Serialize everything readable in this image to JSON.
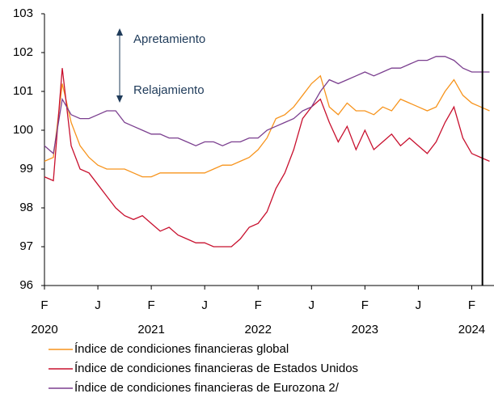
{
  "chart_data": {
    "type": "line",
    "x": [
      0,
      1,
      2,
      3,
      4,
      5,
      6,
      7,
      8,
      9,
      10,
      11,
      12,
      13,
      14,
      15,
      16,
      17,
      18,
      19,
      20,
      21,
      22,
      23,
      24,
      25,
      26,
      27,
      28,
      29,
      30,
      31,
      32,
      33,
      34,
      35,
      36,
      37,
      38,
      39,
      40,
      41,
      42,
      43,
      44,
      45,
      46,
      47,
      48,
      49,
      50
    ],
    "xlim": [
      0,
      50.5
    ],
    "xticks": [
      {
        "value": 0,
        "label": "F",
        "year": "2020"
      },
      {
        "value": 6,
        "label": "J"
      },
      {
        "value": 12,
        "label": "F",
        "year": "2021"
      },
      {
        "value": 18,
        "label": "J"
      },
      {
        "value": 24,
        "label": "F",
        "year": "2022"
      },
      {
        "value": 30,
        "label": "J"
      },
      {
        "value": 36,
        "label": "F",
        "year": "2023"
      },
      {
        "value": 42,
        "label": "J"
      },
      {
        "value": 48,
        "label": "F",
        "year": "2024"
      }
    ],
    "ylim": [
      96,
      103
    ],
    "yticks": [
      96,
      97,
      98,
      99,
      100,
      101,
      102,
      103
    ],
    "vline": 49.2,
    "annotations": [
      "Apretamiento",
      "Relajamiento"
    ],
    "series": [
      {
        "name": "Índice de condiciones financieras global",
        "color": "#f7941d",
        "values": [
          99.2,
          99.3,
          101.2,
          100.2,
          99.6,
          99.3,
          99.1,
          99.0,
          99.0,
          99.0,
          98.9,
          98.8,
          98.8,
          98.9,
          98.9,
          98.9,
          98.9,
          98.9,
          98.9,
          99.0,
          99.1,
          99.1,
          99.2,
          99.3,
          99.5,
          99.8,
          100.3,
          100.4,
          100.6,
          100.9,
          101.2,
          101.4,
          100.6,
          100.4,
          100.7,
          100.5,
          100.5,
          100.4,
          100.6,
          100.5,
          100.8,
          100.7,
          100.6,
          100.5,
          100.6,
          101.0,
          101.3,
          100.9,
          100.7,
          100.6,
          100.5
        ]
      },
      {
        "name": "Índice de condiciones financieras de Estados Unidos",
        "color": "#c8102e",
        "values": [
          98.8,
          98.7,
          101.6,
          99.6,
          99.0,
          98.9,
          98.6,
          98.3,
          98.0,
          97.8,
          97.7,
          97.8,
          97.6,
          97.4,
          97.5,
          97.3,
          97.2,
          97.1,
          97.1,
          97.0,
          97.0,
          97.0,
          97.2,
          97.5,
          97.6,
          97.9,
          98.5,
          98.9,
          99.5,
          100.3,
          100.6,
          100.8,
          100.2,
          99.7,
          100.1,
          99.5,
          100.0,
          99.5,
          99.7,
          99.9,
          99.6,
          99.8,
          99.6,
          99.4,
          99.7,
          100.2,
          100.6,
          99.8,
          99.4,
          99.3,
          99.2
        ]
      },
      {
        "name": "Índice de condiciones financieras de Eurozona 2/",
        "color": "#7b3f8f",
        "values": [
          99.6,
          99.4,
          100.8,
          100.4,
          100.3,
          100.3,
          100.4,
          100.5,
          100.5,
          100.2,
          100.1,
          100.0,
          99.9,
          99.9,
          99.8,
          99.8,
          99.7,
          99.6,
          99.7,
          99.7,
          99.6,
          99.7,
          99.7,
          99.8,
          99.8,
          100.0,
          100.1,
          100.2,
          100.3,
          100.5,
          100.6,
          101.0,
          101.3,
          101.2,
          101.3,
          101.4,
          101.5,
          101.4,
          101.5,
          101.6,
          101.6,
          101.7,
          101.8,
          101.8,
          101.9,
          101.9,
          101.8,
          101.6,
          101.5,
          101.5,
          101.5
        ]
      }
    ]
  }
}
